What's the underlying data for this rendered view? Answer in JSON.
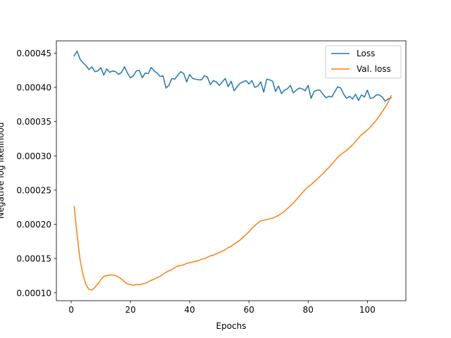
{
  "chart_data": {
    "type": "line",
    "title": "",
    "xlabel": "Epochs",
    "ylabel": "Negative log likelihood",
    "xlim": [
      -5,
      113
    ],
    "ylim": [
      8.85e-05,
      0.000468
    ],
    "xticks": [
      0,
      20,
      40,
      60,
      80,
      100
    ],
    "yticks": [
      0.0001,
      0.00015,
      0.0002,
      0.00025,
      0.0003,
      0.00035,
      0.0004,
      0.00045
    ],
    "ytick_labels": [
      "0.00010",
      "0.00015",
      "0.00020",
      "0.00025",
      "0.00030",
      "0.00035",
      "0.00040",
      "0.00045"
    ],
    "grid": false,
    "legend_position": "top-right",
    "x": [
      1,
      2,
      3,
      4,
      5,
      6,
      7,
      8,
      9,
      10,
      11,
      12,
      13,
      14,
      15,
      16,
      17,
      18,
      19,
      20,
      21,
      22,
      23,
      24,
      25,
      26,
      27,
      28,
      29,
      30,
      31,
      32,
      33,
      34,
      35,
      36,
      37,
      38,
      39,
      40,
      41,
      42,
      43,
      44,
      45,
      46,
      47,
      48,
      49,
      50,
      51,
      52,
      53,
      54,
      55,
      56,
      57,
      58,
      59,
      60,
      61,
      62,
      63,
      64,
      65,
      66,
      67,
      68,
      69,
      70,
      71,
      72,
      73,
      74,
      75,
      76,
      77,
      78,
      79,
      80,
      81,
      82,
      83,
      84,
      85,
      86,
      87,
      88,
      89,
      90,
      91,
      92,
      93,
      94,
      95,
      96,
      97,
      98,
      99,
      100,
      101,
      102,
      103,
      104,
      105,
      106,
      107,
      108
    ],
    "series": [
      {
        "name": "Loss",
        "color": "#1f77b4",
        "values": [
          0.000446,
          0.000453,
          0.000441,
          0.000436,
          0.000432,
          0.000426,
          0.00043,
          0.000423,
          0.000424,
          0.000429,
          0.000418,
          0.000427,
          0.000422,
          0.000424,
          0.000423,
          0.000419,
          0.000422,
          0.00043,
          0.000421,
          0.000414,
          0.000417,
          0.000424,
          0.000425,
          0.000414,
          0.000421,
          0.00042,
          0.000429,
          0.000424,
          0.000421,
          0.000416,
          0.000417,
          0.000399,
          0.000403,
          0.000413,
          0.000412,
          0.000418,
          0.000423,
          0.00042,
          0.000408,
          0.000419,
          0.000413,
          0.000412,
          0.000411,
          0.000411,
          0.000417,
          0.000415,
          0.000404,
          0.00041,
          0.000408,
          0.000403,
          0.000408,
          0.000413,
          0.000401,
          0.000409,
          0.000395,
          0.000401,
          0.000406,
          0.000408,
          0.00041,
          0.000405,
          0.00041,
          0.0004,
          0.000402,
          0.000408,
          0.000393,
          0.000412,
          0.000411,
          0.000409,
          0.000394,
          0.000402,
          0.000391,
          0.000396,
          0.000398,
          0.000403,
          0.000392,
          0.000396,
          0.000399,
          0.000398,
          0.000395,
          0.000403,
          0.000384,
          0.000394,
          0.000396,
          0.000396,
          0.00039,
          0.000385,
          0.000387,
          0.000386,
          0.000394,
          0.000401,
          0.000399,
          0.00039,
          0.000384,
          0.000387,
          0.000383,
          0.00039,
          0.000381,
          0.000389,
          0.000386,
          0.000396,
          0.000384,
          0.000385,
          0.000389,
          0.000389,
          0.000386,
          0.00038,
          0.000383,
          0.000385
        ]
      },
      {
        "name": "Val. loss",
        "color": "#ff7f0e",
        "values": [
          0.000226,
          0.000185,
          0.000148,
          0.000126,
          0.000112,
          0.000105,
          0.000104,
          0.000108,
          0.000113,
          0.000119,
          0.000124,
          0.000125,
          0.000126,
          0.000126,
          0.000125,
          0.000123,
          0.00012,
          0.000116,
          0.000113,
          0.000112,
          0.000111,
          0.000112,
          0.000112,
          0.000113,
          0.000114,
          0.000116,
          0.000118,
          0.00012,
          0.000122,
          0.000124,
          0.000127,
          0.00013,
          0.000132,
          0.000134,
          0.000137,
          0.000139,
          0.00014,
          0.000141,
          0.000143,
          0.000144,
          0.000145,
          0.000146,
          0.000147,
          0.000149,
          0.00015,
          0.000152,
          0.000154,
          0.000155,
          0.000157,
          0.000159,
          0.000161,
          0.000163,
          0.000166,
          0.000168,
          0.000171,
          0.000174,
          0.000177,
          0.000181,
          0.000185,
          0.000189,
          0.000194,
          0.000198,
          0.000202,
          0.000205,
          0.000206,
          0.000207,
          0.000208,
          0.000209,
          0.000211,
          0.000213,
          0.000216,
          0.000219,
          0.000223,
          0.000227,
          0.000231,
          0.000236,
          0.000241,
          0.000246,
          0.000251,
          0.000255,
          0.000258,
          0.000262,
          0.000266,
          0.00027,
          0.000274,
          0.000279,
          0.000283,
          0.000288,
          0.000293,
          0.000298,
          0.000302,
          0.000305,
          0.000308,
          0.000312,
          0.000316,
          0.000321,
          0.000326,
          0.000331,
          0.000334,
          0.000338,
          0.000342,
          0.000347,
          0.000352,
          0.000358,
          0.000364,
          0.000371,
          0.000378,
          0.000388
        ]
      }
    ]
  }
}
